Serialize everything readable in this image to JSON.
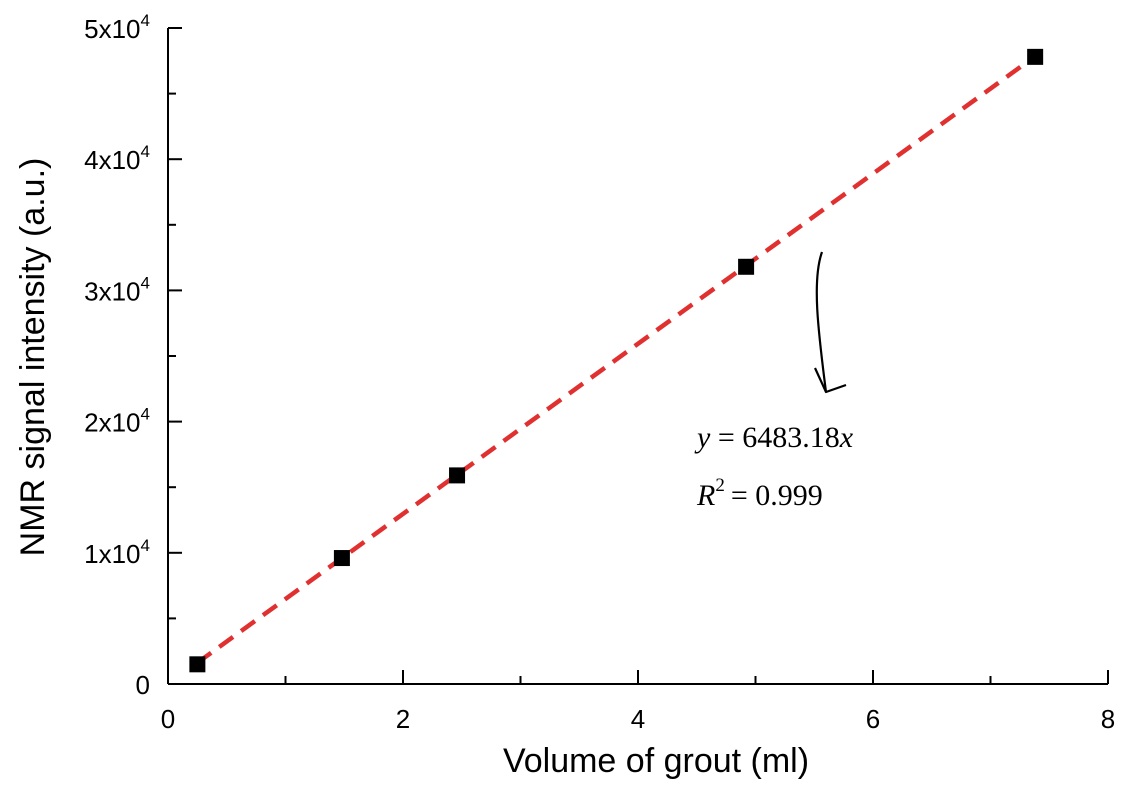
{
  "chart_data": {
    "type": "scatter",
    "xlabel": "Volume of grout (ml)",
    "ylabel": "NMR signal intensity (a.u.)",
    "xlim": [
      0,
      8
    ],
    "ylim": [
      0,
      50000
    ],
    "x_ticks": [
      0,
      2,
      4,
      6,
      8
    ],
    "x_minor_ticks": [
      1,
      3,
      5,
      7
    ],
    "y_ticks": [
      {
        "value": 0,
        "mantissa": "0",
        "exp": ""
      },
      {
        "value": 10000,
        "mantissa": "1x10",
        "exp": "4"
      },
      {
        "value": 20000,
        "mantissa": "2x10",
        "exp": "4"
      },
      {
        "value": 30000,
        "mantissa": "3x10",
        "exp": "4"
      },
      {
        "value": 40000,
        "mantissa": "4x10",
        "exp": "4"
      },
      {
        "value": 50000,
        "mantissa": "5x10",
        "exp": "4"
      }
    ],
    "y_minor_ticks": [
      5000,
      15000,
      25000,
      35000,
      45000
    ],
    "series": [
      {
        "x": [
          0.25,
          1.48,
          2.46,
          4.92,
          7.38
        ],
        "y": [
          1500,
          9600,
          15900,
          31800,
          47800
        ],
        "marker": "square",
        "color": "#000000"
      }
    ],
    "fit": {
      "slope": 6483.18,
      "x_range": [
        0.25,
        7.38
      ],
      "color": "#e03030",
      "style": "dashed"
    },
    "annotation": {
      "equation": "y = 6483.18x",
      "r2_label": "R",
      "r2_exp": "2",
      "r2_value": "= 0.999"
    },
    "grid": false
  }
}
